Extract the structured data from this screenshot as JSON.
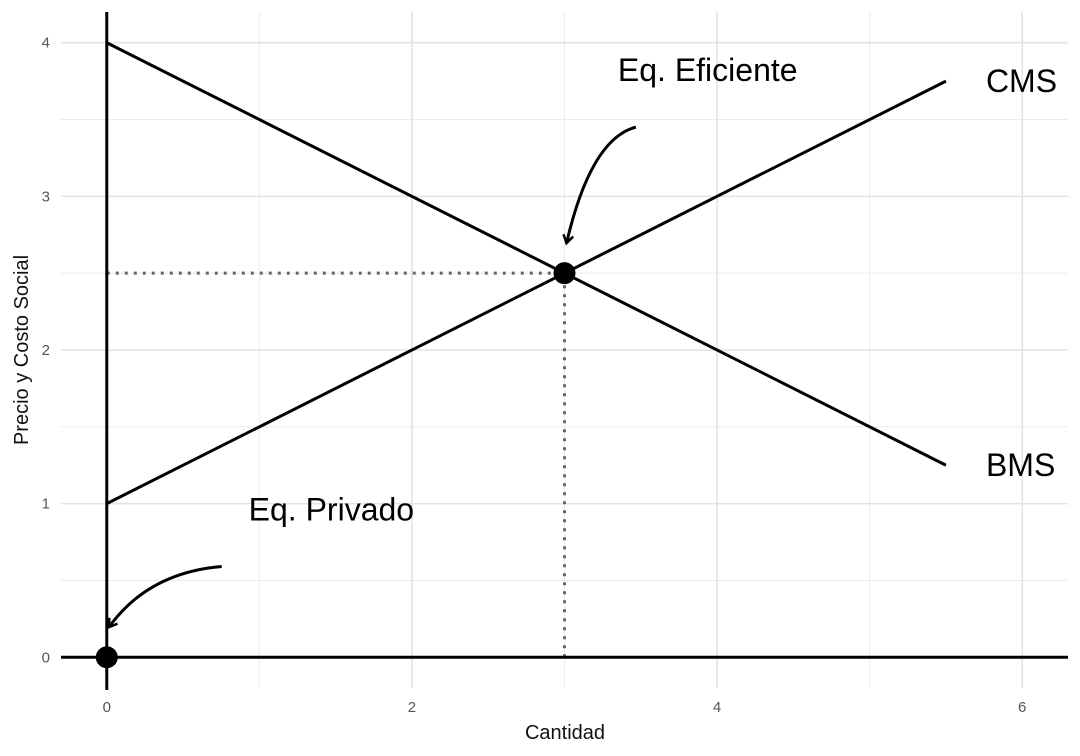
{
  "chart_data": {
    "type": "line",
    "title": "",
    "xlabel": "Cantidad",
    "ylabel": "Precio y Costo Social",
    "xlim": [
      -0.3,
      6.3
    ],
    "ylim": [
      -0.2,
      4.2
    ],
    "x_ticks": [
      0,
      2,
      4,
      6
    ],
    "y_ticks": [
      0,
      1,
      2,
      3,
      4
    ],
    "x_tick_labels": [
      "0",
      "2",
      "4",
      "6"
    ],
    "y_tick_labels": [
      "0",
      "1",
      "2",
      "3",
      "4"
    ],
    "grid": true,
    "series": [
      {
        "name": "CMS",
        "x": [
          0,
          5.5
        ],
        "y": [
          1,
          3.75
        ]
      },
      {
        "name": "BMS",
        "x": [
          0,
          5.5
        ],
        "y": [
          4,
          1.25
        ]
      }
    ],
    "points": [
      {
        "x": 3,
        "y": 2.5
      },
      {
        "x": 0,
        "y": 0
      }
    ],
    "annotations": [
      {
        "text": "Eq. Eficiente",
        "x": 3.35,
        "y": 3.75,
        "arrow_to": [
          3,
          2.5
        ]
      },
      {
        "text": "Eq. Privado",
        "x": 0.93,
        "y": 0.89,
        "arrow_to": [
          0,
          0
        ]
      }
    ],
    "reference_lines": [
      {
        "type": "horizontal",
        "y": 2.5,
        "x_from": 0,
        "x_to": 3,
        "style": "dotted"
      },
      {
        "type": "vertical",
        "x": 3,
        "y_from": 0,
        "y_to": 2.5,
        "style": "dotted"
      }
    ]
  }
}
